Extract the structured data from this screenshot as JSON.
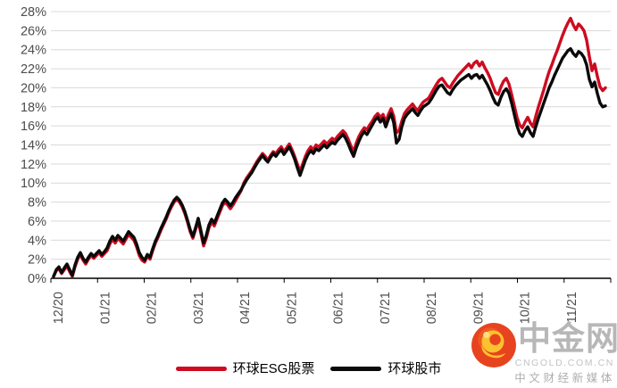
{
  "page": {
    "background": "#ffffff"
  },
  "chart_data": {
    "type": "line",
    "title": "",
    "ylim": [
      0,
      28
    ],
    "y_tick_step": 2,
    "y_ticks": [
      "0%",
      "2%",
      "4%",
      "6%",
      "8%",
      "10%",
      "12%",
      "14%",
      "16%",
      "18%",
      "20%",
      "22%",
      "24%",
      "26%",
      "28%"
    ],
    "x_labels": [
      "12/20",
      "01/21",
      "02/21",
      "03/21",
      "04/21",
      "05/21",
      "06/21",
      "07/21",
      "08/21",
      "09/21",
      "10/21",
      "11/21"
    ],
    "grid_on": true,
    "grid_color": "#d9d9d9",
    "axis_color": "#000000",
    "label_color": "#4d4d4d",
    "legend_position": "bottom",
    "series": [
      {
        "name": "环球ESG股票",
        "color": "#ce0b20",
        "values": [
          0.2,
          0.8,
          1.0,
          0.5,
          0.9,
          1.3,
          0.7,
          0.2,
          1.2,
          2.0,
          2.5,
          1.9,
          1.5,
          2.0,
          2.4,
          2.1,
          2.4,
          2.7,
          2.3,
          2.6,
          2.9,
          3.6,
          4.1,
          3.7,
          4.2,
          3.9,
          3.6,
          4.1,
          4.6,
          4.3,
          4.0,
          3.3,
          2.4,
          1.9,
          1.7,
          2.3,
          2.0,
          2.9,
          3.7,
          4.3,
          5.0,
          5.6,
          6.2,
          6.9,
          7.5,
          8.0,
          8.3,
          8.0,
          7.5,
          6.8,
          5.9,
          4.9,
          4.2,
          5.1,
          6.0,
          4.7,
          3.4,
          4.2,
          5.3,
          5.9,
          5.5,
          6.2,
          6.9,
          7.6,
          8.0,
          7.7,
          7.3,
          7.7,
          8.2,
          8.7,
          9.2,
          10.0,
          10.5,
          10.9,
          11.3,
          11.8,
          12.3,
          12.7,
          13.1,
          12.8,
          12.4,
          12.9,
          13.3,
          13.1,
          13.5,
          13.8,
          13.3,
          13.7,
          14.1,
          13.5,
          12.8,
          12.0,
          11.2,
          12.0,
          12.8,
          13.4,
          13.8,
          13.5,
          14.0,
          13.8,
          14.1,
          14.4,
          14.1,
          14.4,
          14.7,
          14.5,
          14.9,
          15.2,
          15.5,
          15.2,
          14.6,
          13.9,
          13.3,
          14.2,
          14.9,
          15.4,
          15.8,
          15.6,
          16.1,
          16.5,
          17.0,
          17.3,
          16.9,
          17.2,
          16.4,
          17.2,
          17.8,
          17.0,
          15.3,
          15.5,
          16.5,
          17.3,
          17.7,
          18.0,
          18.3,
          17.9,
          17.6,
          18.1,
          18.5,
          18.7,
          18.9,
          19.4,
          19.9,
          20.4,
          20.8,
          21.0,
          20.6,
          20.2,
          20.0,
          20.5,
          20.9,
          21.3,
          21.6,
          21.9,
          22.2,
          22.5,
          22.1,
          22.6,
          22.8,
          22.3,
          22.7,
          22.1,
          21.6,
          21.0,
          20.2,
          19.5,
          19.3,
          20.1,
          20.7,
          21.0,
          20.4,
          19.3,
          18.1,
          16.9,
          16.1,
          15.8,
          16.4,
          16.9,
          16.3,
          15.9,
          17.0,
          18.0,
          18.9,
          19.8,
          20.8,
          21.7,
          22.4,
          23.2,
          23.9,
          24.7,
          25.5,
          26.2,
          26.8,
          27.3,
          26.6,
          26.1,
          26.7,
          26.4,
          26.0,
          25.0,
          23.3,
          21.8,
          22.5,
          21.2,
          20.1,
          19.7,
          20.0
        ]
      },
      {
        "name": "环球股市",
        "color": "#0a0a0a",
        "values": [
          0.2,
          0.9,
          1.2,
          0.6,
          1.1,
          1.5,
          0.9,
          0.3,
          1.4,
          2.2,
          2.7,
          2.1,
          1.7,
          2.2,
          2.6,
          2.3,
          2.6,
          2.9,
          2.5,
          2.8,
          3.2,
          3.9,
          4.4,
          4.0,
          4.5,
          4.2,
          3.9,
          4.4,
          4.9,
          4.6,
          4.3,
          3.6,
          2.7,
          2.2,
          1.9,
          2.5,
          2.2,
          3.1,
          3.9,
          4.5,
          5.2,
          5.8,
          6.4,
          7.1,
          7.7,
          8.2,
          8.5,
          8.2,
          7.7,
          7.0,
          6.1,
          5.1,
          4.4,
          5.3,
          6.3,
          5.0,
          3.7,
          4.5,
          5.6,
          6.2,
          5.8,
          6.5,
          7.2,
          7.9,
          8.3,
          8.0,
          7.6,
          8.0,
          8.5,
          8.9,
          9.3,
          9.8,
          10.3,
          10.7,
          11.1,
          11.6,
          12.1,
          12.5,
          12.9,
          12.5,
          12.2,
          12.7,
          13.1,
          12.8,
          13.2,
          13.5,
          13.0,
          13.4,
          13.8,
          13.2,
          12.5,
          11.6,
          10.8,
          11.6,
          12.4,
          13.0,
          13.4,
          13.1,
          13.6,
          13.4,
          13.7,
          14.0,
          13.7,
          14.0,
          14.3,
          14.1,
          14.5,
          14.8,
          15.1,
          14.7,
          14.1,
          13.4,
          12.8,
          13.7,
          14.4,
          15.0,
          15.4,
          15.1,
          15.6,
          16.1,
          16.6,
          16.9,
          16.4,
          16.8,
          15.9,
          16.7,
          17.3,
          16.3,
          14.2,
          14.6,
          15.9,
          16.8,
          17.2,
          17.5,
          17.8,
          17.4,
          17.1,
          17.6,
          18.0,
          18.2,
          18.4,
          18.8,
          19.3,
          19.8,
          20.2,
          20.3,
          19.9,
          19.5,
          19.3,
          19.8,
          20.2,
          20.5,
          20.8,
          21.0,
          21.2,
          21.4,
          21.0,
          21.3,
          21.4,
          21.0,
          21.3,
          20.8,
          20.3,
          19.7,
          19.0,
          18.4,
          18.2,
          19.0,
          19.6,
          19.9,
          19.4,
          18.4,
          17.2,
          16.0,
          15.2,
          14.9,
          15.5,
          15.9,
          15.3,
          14.9,
          15.9,
          16.8,
          17.6,
          18.4,
          19.2,
          20.0,
          20.6,
          21.3,
          21.9,
          22.5,
          23.1,
          23.5,
          23.9,
          24.1,
          23.6,
          23.3,
          23.8,
          23.6,
          23.2,
          22.4,
          20.9,
          20.1,
          20.6,
          19.4,
          18.4,
          18.0,
          18.1
        ]
      }
    ]
  },
  "legend": {
    "items": [
      {
        "label": "环球ESG股票",
        "color": "#ce0b20"
      },
      {
        "label": "环球股市",
        "color": "#0a0a0a"
      }
    ]
  },
  "watermark": {
    "site_name": "中金网",
    "domain": "CNGOLD.COM.CN",
    "tagline": "中文财经新媒体"
  }
}
